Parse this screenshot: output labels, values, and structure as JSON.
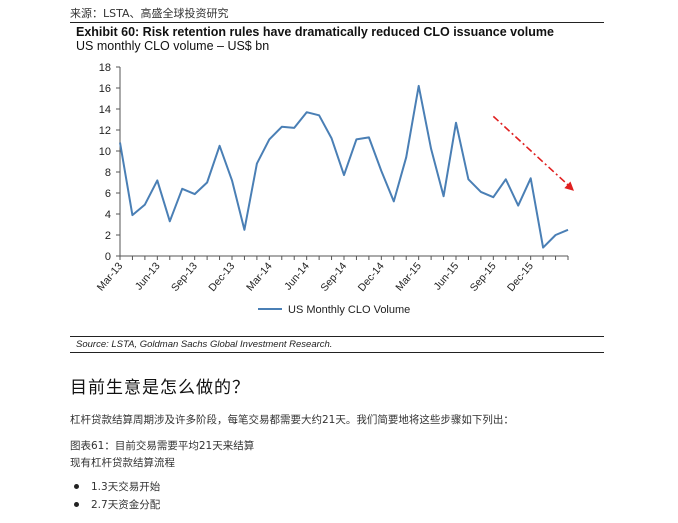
{
  "header": {
    "source_text": "来源：LSTA、高盛全球投资研究"
  },
  "exhibit": {
    "title": "Exhibit 60: Risk retention rules have dramatically reduced CLO issuance volume",
    "subtitle": "US monthly CLO volume – US$ bn",
    "source_note": "Source: LSTA, Goldman Sachs Global Investment Research."
  },
  "chart_data": {
    "type": "line",
    "title": "Exhibit 60: Risk retention rules have dramatically reduced CLO issuance volume",
    "subtitle": "US monthly CLO volume – US$ bn",
    "xlabel": "",
    "ylabel": "",
    "ylim": [
      0,
      18
    ],
    "yticks": [
      0,
      2,
      4,
      6,
      8,
      10,
      12,
      14,
      16,
      18
    ],
    "x": [
      "Mar-13",
      "Apr-13",
      "May-13",
      "Jun-13",
      "Jul-13",
      "Aug-13",
      "Sep-13",
      "Oct-13",
      "Nov-13",
      "Dec-13",
      "Jan-14",
      "Feb-14",
      "Mar-14",
      "Apr-14",
      "May-14",
      "Jun-14",
      "Jul-14",
      "Aug-14",
      "Sep-14",
      "Oct-14",
      "Nov-14",
      "Dec-14",
      "Jan-15",
      "Feb-15",
      "Mar-15",
      "Apr-15",
      "May-15",
      "Jun-15",
      "Jul-15",
      "Aug-15",
      "Sep-15",
      "Oct-15",
      "Nov-15",
      "Dec-15",
      "Jan-16",
      "Feb-16",
      "Mar-16"
    ],
    "xtick_labels": [
      "Mar-13",
      "Jun-13",
      "Sep-13",
      "Dec-13",
      "Mar-14",
      "Jun-14",
      "Sep-14",
      "Dec-14",
      "Mar-15",
      "Jun-15",
      "Sep-15",
      "Dec-15"
    ],
    "series": [
      {
        "name": "US Monthly CLO Volume",
        "color": "#4a7fb5",
        "values": [
          10.8,
          3.9,
          4.9,
          7.2,
          3.3,
          6.4,
          5.9,
          7.0,
          10.5,
          7.2,
          2.5,
          8.8,
          11.1,
          12.3,
          12.2,
          13.7,
          13.4,
          11.2,
          7.7,
          11.1,
          11.3,
          8.1,
          5.2,
          9.4,
          16.2,
          10.2,
          5.7,
          12.7,
          7.3,
          6.1,
          5.6,
          7.3,
          4.8,
          7.4,
          0.8,
          2.0,
          2.5
        ]
      }
    ],
    "legend": {
      "position": "bottom-center",
      "entries": [
        "US Monthly CLO Volume"
      ]
    },
    "grid": false,
    "annotations": [
      {
        "kind": "dash-dot arrow",
        "color": "#e02020",
        "meaning": "downward trend",
        "from_x": "Sep-15",
        "from_y": 13.3,
        "to_x": "Mar-16",
        "to_y": 6.2
      }
    ]
  },
  "section": {
    "heading": "目前生意是怎么做的？",
    "body": "杠杆贷款结算周期涉及许多阶段，每笔交易都需要大约21天。我们简要地将这些步骤如下列出：",
    "figure_title": "图表61：目前交易需要平均21天来结算",
    "figure_subtitle": "现有杠杆贷款结算流程",
    "bullets": [
      "1.3天交易开始",
      "2.7天资金分配"
    ]
  }
}
